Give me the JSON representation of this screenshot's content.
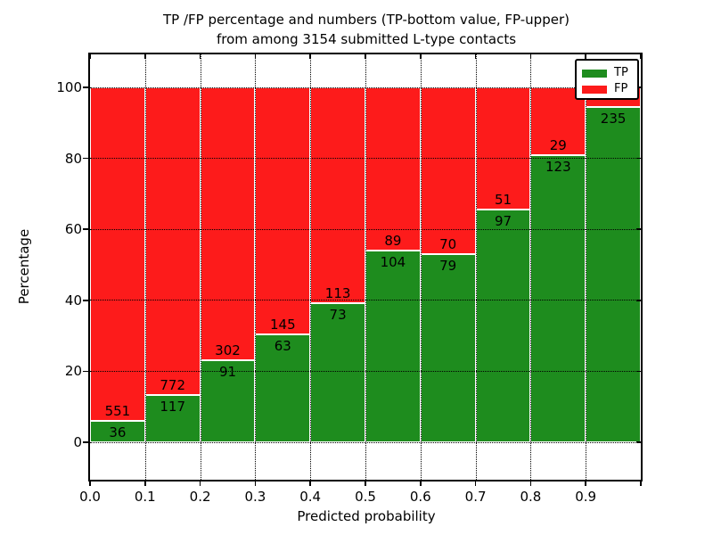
{
  "figure": {
    "title_line1": "TP /FP percentage and numbers (TP-bottom value, FP-upper)",
    "title_line2": "from among 3154 submitted L-type contacts"
  },
  "chart_data": {
    "type": "bar",
    "stacked": true,
    "title": "TP /FP percentage and numbers (TP-bottom value, FP-upper) from among 3154 submitted L-type contacts",
    "xlabel": "Predicted probability",
    "ylabel": "Percentage",
    "total_contacts": 3154,
    "x_tick_labels": [
      "0.0",
      "0.1",
      "0.2",
      "0.3",
      "0.4",
      "0.5",
      "0.6",
      "0.7",
      "0.8",
      "0.9"
    ],
    "y_ticks": [
      0,
      20,
      40,
      60,
      80,
      100
    ],
    "x_range": [
      0.0,
      1.0
    ],
    "ylim_pct": [
      -10.5,
      110.5
    ],
    "grid": "dotted black, drawn over bars",
    "legend": {
      "position": "upper right",
      "entries": [
        {
          "label": "TP",
          "color": "#1e8c1e"
        },
        {
          "label": "FP",
          "color": "#fd1b1b"
        }
      ]
    },
    "colors": {
      "tp": "#1e8c1e",
      "fp": "#fd1b1b",
      "bar_edge": "#ffffff"
    },
    "bins": [
      {
        "x_start": "0.0",
        "x_end": "0.1",
        "tp_count": 36,
        "fp_count": 551,
        "tp_pct": 6.1
      },
      {
        "x_start": "0.1",
        "x_end": "0.2",
        "tp_count": 117,
        "fp_count": 772,
        "tp_pct": 13.2
      },
      {
        "x_start": "0.2",
        "x_end": "0.3",
        "tp_count": 91,
        "fp_count": 302,
        "tp_pct": 23.2
      },
      {
        "x_start": "0.3",
        "x_end": "0.4",
        "tp_count": 63,
        "fp_count": 145,
        "tp_pct": 30.3
      },
      {
        "x_start": "0.4",
        "x_end": "0.5",
        "tp_count": 73,
        "fp_count": 113,
        "tp_pct": 39.2
      },
      {
        "x_start": "0.5",
        "x_end": "0.6",
        "tp_count": 104,
        "fp_count": 89,
        "tp_pct": 53.9
      },
      {
        "x_start": "0.6",
        "x_end": "0.7",
        "tp_count": 79,
        "fp_count": 70,
        "tp_pct": 53.0
      },
      {
        "x_start": "0.7",
        "x_end": "0.8",
        "tp_count": 97,
        "fp_count": 51,
        "tp_pct": 65.5
      },
      {
        "x_start": "0.8",
        "x_end": "0.9",
        "tp_count": 123,
        "fp_count": 29,
        "tp_pct": 80.9
      },
      {
        "x_start": "0.9",
        "x_end": "1.0",
        "tp_count": 235,
        "fp_count": null,
        "tp_pct": 94.4
      }
    ]
  }
}
